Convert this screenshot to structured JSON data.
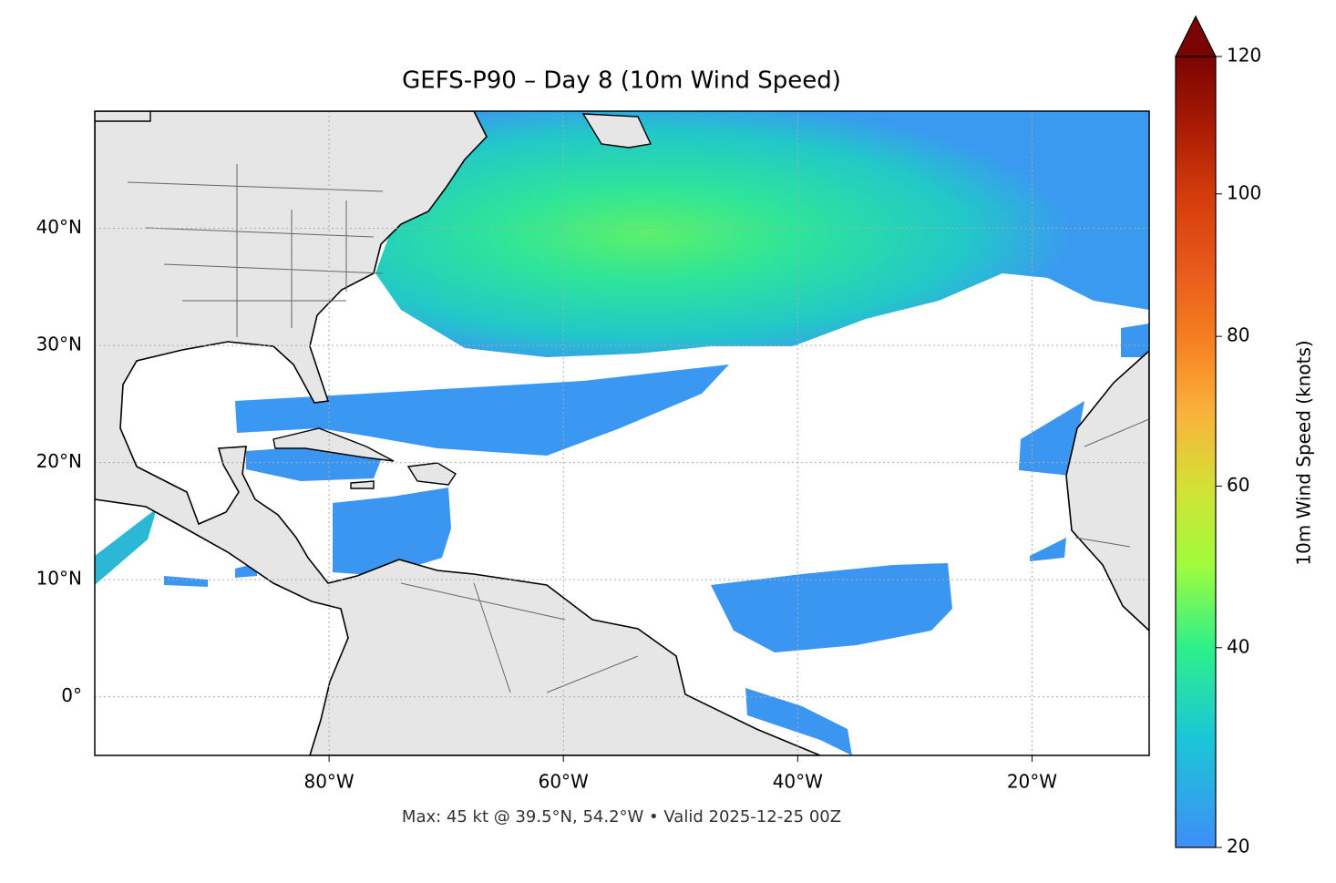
{
  "chart_data": {
    "type": "map",
    "title": "GEFS-P90 – Day 8 (10m Wind Speed)",
    "footer": "Max: 45 kt @ 39.5°N, 54.2°W • Valid 2025-12-25 00Z",
    "xlim": [
      -100,
      -10
    ],
    "ylim": [
      -5,
      50
    ],
    "xticks": [
      {
        "value": -80,
        "label": "80°W"
      },
      {
        "value": -60,
        "label": "60°W"
      },
      {
        "value": -40,
        "label": "40°W"
      },
      {
        "value": -20,
        "label": "20°W"
      }
    ],
    "yticks": [
      {
        "value": 0,
        "label": "0°"
      },
      {
        "value": 10,
        "label": "10°N"
      },
      {
        "value": 20,
        "label": "20°N"
      },
      {
        "value": 30,
        "label": "30°N"
      },
      {
        "value": 40,
        "label": "40°N"
      }
    ],
    "grid": true,
    "colorbar": {
      "label": "10m Wind Speed (knots)",
      "lim": [
        20,
        120
      ],
      "ticks": [
        20,
        40,
        60,
        80,
        100,
        120
      ],
      "extend": "max",
      "colors": [
        "#3e8ef7",
        "#1ac7d6",
        "#2ef08a",
        "#a0fc3c",
        "#d4e035",
        "#fbb03b",
        "#f57d20",
        "#e8571a",
        "#d33b0b",
        "#a91a03",
        "#7a0403"
      ]
    }
  }
}
